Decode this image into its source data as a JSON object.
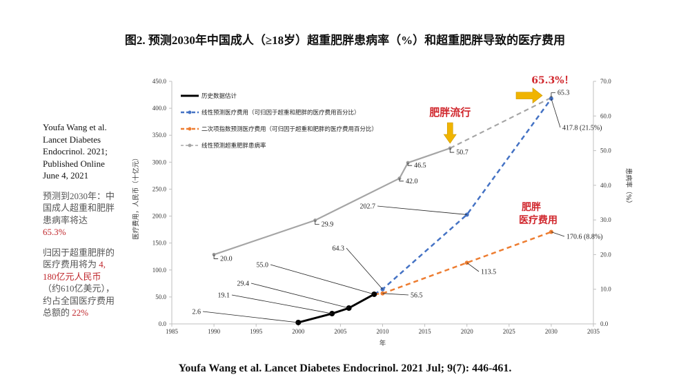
{
  "title": "图2. 预测2030年中国成人（≥18岁）超重肥胖患病率（%）和超重肥胖导致的医疗费用",
  "footer": "Youfa Wang et al. Lancet Diabetes Endocrinol. 2021 Jul; 9(7): 446-461.",
  "side": {
    "citation": "Youfa Wang et al. Lancet Diabetes Endocrinol. 2021; Published Online June 4, 2021",
    "p2_text": "预测到2030年：中国成人超重和肥胖患病率将达",
    "p2_red": "65.3%",
    "p3_text1": "归因于超重肥胖的医疗费用将为",
    "p3_red1": "4, 180亿元人民币",
    "p3_text2": "（约610亿美元），约占全国医疗费用总额的",
    "p3_red2": "22%"
  },
  "chart_data": {
    "type": "line",
    "title": "图2. 预测2030年中国成人（≥18岁）超重肥胖患病率（%）和超重肥胖导致的医疗费用",
    "xlabel": "年",
    "ylabel": "医疗费用，人民币（十亿元）",
    "y2label": "患病率（%）",
    "xlim": [
      1985,
      2035
    ],
    "ylim": [
      0,
      450
    ],
    "y2lim": [
      0,
      70
    ],
    "x_ticks": [
      "1985",
      "1990",
      "1995",
      "2000",
      "2005",
      "2010",
      "2015",
      "2020",
      "2025",
      "2030",
      "2035"
    ],
    "y_ticks": [
      "0.0",
      "50.0",
      "100.0",
      "150.0",
      "200.0",
      "250.0",
      "300.0",
      "350.0",
      "400.0",
      "450.0"
    ],
    "y2_ticks": [
      "0.0",
      "10.0",
      "20.0",
      "30.0",
      "40.0",
      "50.0",
      "60.0",
      "70.0"
    ],
    "grid": false,
    "legend_position": "top-left",
    "series": [
      {
        "name": "历史数据估计",
        "axis": "left",
        "style": "solid",
        "color": "#000000",
        "x": [
          2000,
          2004,
          2006,
          2009
        ],
        "values": [
          2.6,
          19.1,
          29.4,
          55.0
        ],
        "labels": [
          "2.6",
          "19.1",
          "29.4",
          "55.0"
        ]
      },
      {
        "name": "线性预测医疗费用（可归因于超重和肥胖的医疗费用百分比）",
        "axis": "left",
        "style": "dashed",
        "color": "#4472c4",
        "x": [
          2010,
          2020,
          2030
        ],
        "values": [
          64.3,
          202.7,
          417.8
        ],
        "labels": [
          "64.3",
          "202.7",
          "417.8 (21.5%)"
        ]
      },
      {
        "name": "二次项指数预测医疗费用（可归因于超重和肥胖的医疗费用百分比）",
        "axis": "left",
        "style": "dashed",
        "color": "#ed7d31",
        "x": [
          2010,
          2020,
          2030
        ],
        "values": [
          56.5,
          113.5,
          170.6
        ],
        "labels": [
          "56.5",
          "113.5",
          "170.6 (8.8%)"
        ]
      },
      {
        "name": "线性预测超重肥胖患病率",
        "axis": "right",
        "style": "solid-then-dashed",
        "color": "#a5a5a5",
        "x": [
          1990,
          2002,
          2012,
          2013,
          2018,
          2030
        ],
        "values": [
          20.0,
          29.9,
          42.0,
          46.5,
          50.7,
          65.3
        ],
        "labels": [
          "20.0",
          "29.9",
          "42.0",
          "46.5",
          "50.7",
          "65.3"
        ],
        "dashed_from_x": 2018
      }
    ],
    "annotations": [
      {
        "text": "肥胖流行",
        "color": "#d0262c",
        "arrow": "down",
        "arrow_color": "#f0b400",
        "target_x": 2018
      },
      {
        "text": "65.3%！",
        "color": "#d0262c",
        "arrow": "right",
        "arrow_color": "#f0b400",
        "target_x": 2030
      },
      {
        "text": "肥胖\n医疗费用",
        "color": "#d0262c"
      }
    ]
  }
}
